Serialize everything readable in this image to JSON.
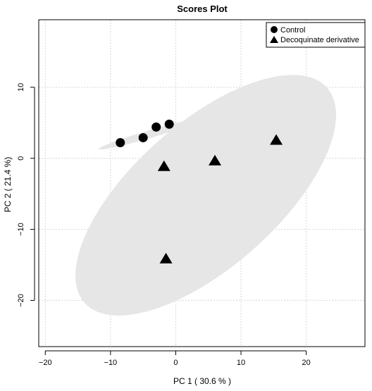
{
  "chart_data": {
    "type": "scatter",
    "title": "Scores Plot",
    "xlabel": "PC 1 ( 30.6 % )",
    "ylabel": "PC 2 ( 21.4 %)",
    "xlim": [
      -21,
      29
    ],
    "ylim": [
      -26.5,
      19.5
    ],
    "xticks": [
      -20,
      -10,
      0,
      10,
      20
    ],
    "yticks": [
      -20,
      -10,
      0,
      10
    ],
    "grid": true,
    "legend_position": "top-right",
    "series": [
      {
        "name": "Control",
        "marker": "circle",
        "color": "#000000",
        "points": [
          {
            "x": -8.5,
            "y": 2.2
          },
          {
            "x": -5.0,
            "y": 2.9
          },
          {
            "x": -3.0,
            "y": 4.4
          },
          {
            "x": -1.0,
            "y": 4.8
          }
        ]
      },
      {
        "name": "Decoquinate derivative",
        "marker": "triangle",
        "color": "#000000",
        "points": [
          {
            "x": -1.8,
            "y": -1.2
          },
          {
            "x": 6.0,
            "y": -0.4
          },
          {
            "x": 15.4,
            "y": 2.5
          },
          {
            "x": -1.5,
            "y": -14.2
          }
        ]
      }
    ],
    "confidence_ellipses": [
      {
        "series": "Control",
        "center": [
          -3.6,
          3.5
        ],
        "semi_axis_major": 8.5,
        "semi_axis_minor": 0.55,
        "angle_deg": 15,
        "color": "#e6e6e6"
      },
      {
        "series": "Decoquinate derivative",
        "center": [
          4.6,
          -5.2
        ],
        "semi_axis_major": 24,
        "semi_axis_minor": 10.5,
        "angle_deg": 38,
        "color": "#e6e6e6"
      }
    ]
  }
}
